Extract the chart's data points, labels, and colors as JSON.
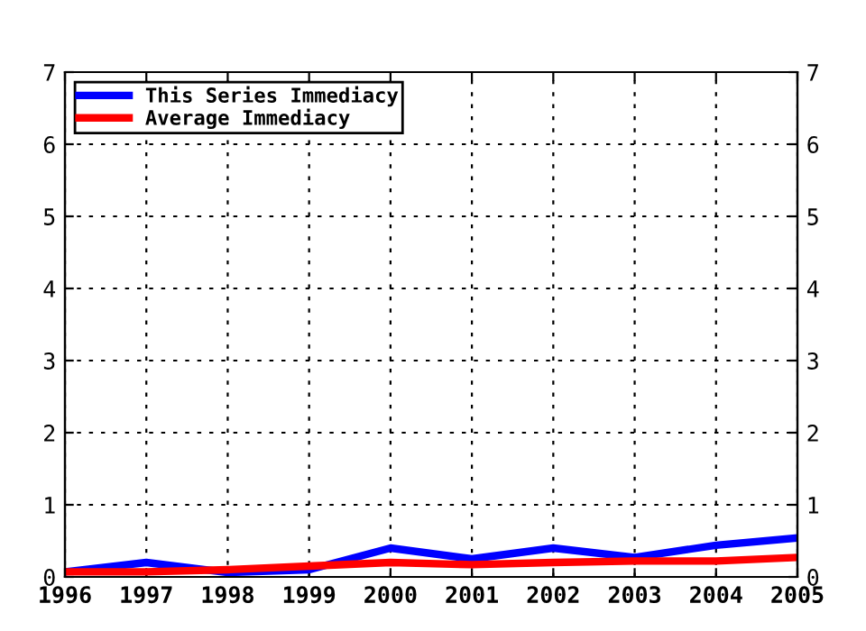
{
  "chart_data": {
    "type": "line",
    "categories": [
      "1996",
      "1997",
      "1998",
      "1999",
      "2000",
      "2001",
      "2002",
      "2003",
      "2004",
      "2005"
    ],
    "series": [
      {
        "name": "This Series Immediacy",
        "color": "#0000ff",
        "values": [
          0.07,
          0.2,
          0.06,
          0.1,
          0.4,
          0.25,
          0.4,
          0.27,
          0.44,
          0.54
        ]
      },
      {
        "name": "Average Immediacy",
        "color": "#ff0000",
        "values": [
          0.07,
          0.07,
          0.1,
          0.15,
          0.2,
          0.17,
          0.2,
          0.22,
          0.22,
          0.27
        ]
      }
    ],
    "ylim": [
      0,
      7
    ],
    "yticks": [
      0,
      1,
      2,
      3,
      4,
      5,
      6,
      7
    ],
    "y2lim": [
      0,
      7
    ],
    "y2ticks": [
      0,
      1,
      2,
      3,
      4,
      5,
      6,
      7
    ],
    "grid": true,
    "legend": "top left",
    "line_style": "solid",
    "marker": "none"
  }
}
